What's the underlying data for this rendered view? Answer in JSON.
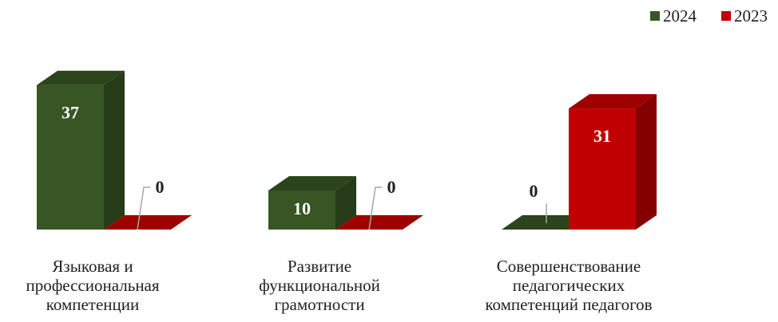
{
  "chart_data": {
    "type": "bar",
    "categories": [
      "Языковая и профессиональная компетенции",
      "Развитие функциональной грамотности",
      "Совершенствование педагогических компетенций педагогов"
    ],
    "category_lines": [
      [
        "Языковая и",
        "профессиональная",
        "компетенции"
      ],
      [
        "Развитие",
        "функциональной",
        "грамотности"
      ],
      [
        "Совершенствование",
        "педагогических",
        "компетенций педагогов"
      ]
    ],
    "series": [
      {
        "name": "2024",
        "values": [
          37,
          10,
          0
        ]
      },
      {
        "name": "2023",
        "values": [
          0,
          0,
          31
        ]
      }
    ],
    "data_labels": [
      [
        "37",
        "10",
        "0"
      ],
      [
        "0",
        "0",
        "31"
      ]
    ],
    "legend": {
      "position": "top-right",
      "items": [
        "2024",
        "2023"
      ]
    },
    "title": "",
    "xlabel": "",
    "ylabel": "",
    "ylim": [
      0,
      40
    ],
    "grid": false,
    "colors": {
      "2024": {
        "front": "#375623",
        "side": "#263c18",
        "top": "#2b441b"
      },
      "2023": {
        "front": "#c00000",
        "side": "#840000",
        "top": "#9e0000"
      },
      "label_inside": "#ffffff",
      "label_outside": "#222222",
      "leader": "#a6a6a6"
    }
  }
}
